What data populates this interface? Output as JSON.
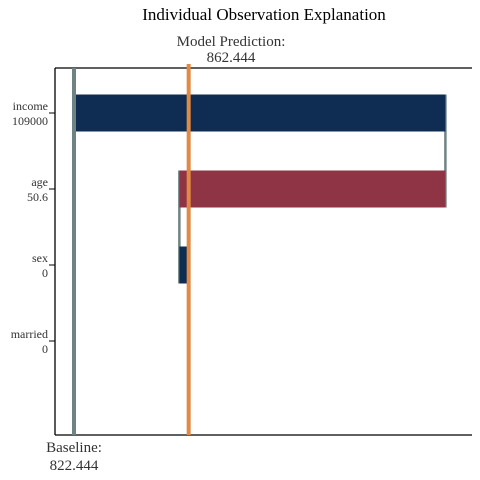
{
  "chart_data": {
    "type": "bar",
    "title": "Individual Observation Explanation",
    "prediction_label": "Model Prediction:",
    "prediction_value": "862.444",
    "baseline_label": "Baseline:",
    "baseline_value": "822.444",
    "baseline": 822.444,
    "prediction": 862.444,
    "xlim": [
      822.444,
      955.0
    ],
    "features": [
      {
        "name": "income",
        "value_label": "109000",
        "start": 822.444,
        "end": 952.0,
        "contribution": 129.556,
        "color": "#0f2d52"
      },
      {
        "name": "age",
        "value_label": "50.6",
        "start": 952.0,
        "end": 859.2,
        "contribution": -92.8,
        "color": "#8f3445"
      },
      {
        "name": "sex",
        "value_label": "0",
        "start": 859.2,
        "end": 862.444,
        "contribution": 3.244,
        "color": "#0f2d52"
      },
      {
        "name": "married",
        "value_label": "0",
        "start": 862.444,
        "end": 862.444,
        "contribution": 0.0,
        "color": "#0f2d52"
      }
    ],
    "colors": {
      "baseline_line": "#6e8383",
      "prediction_line": "#e08a45",
      "connector": "#6e8383",
      "axis": "#000000"
    }
  }
}
